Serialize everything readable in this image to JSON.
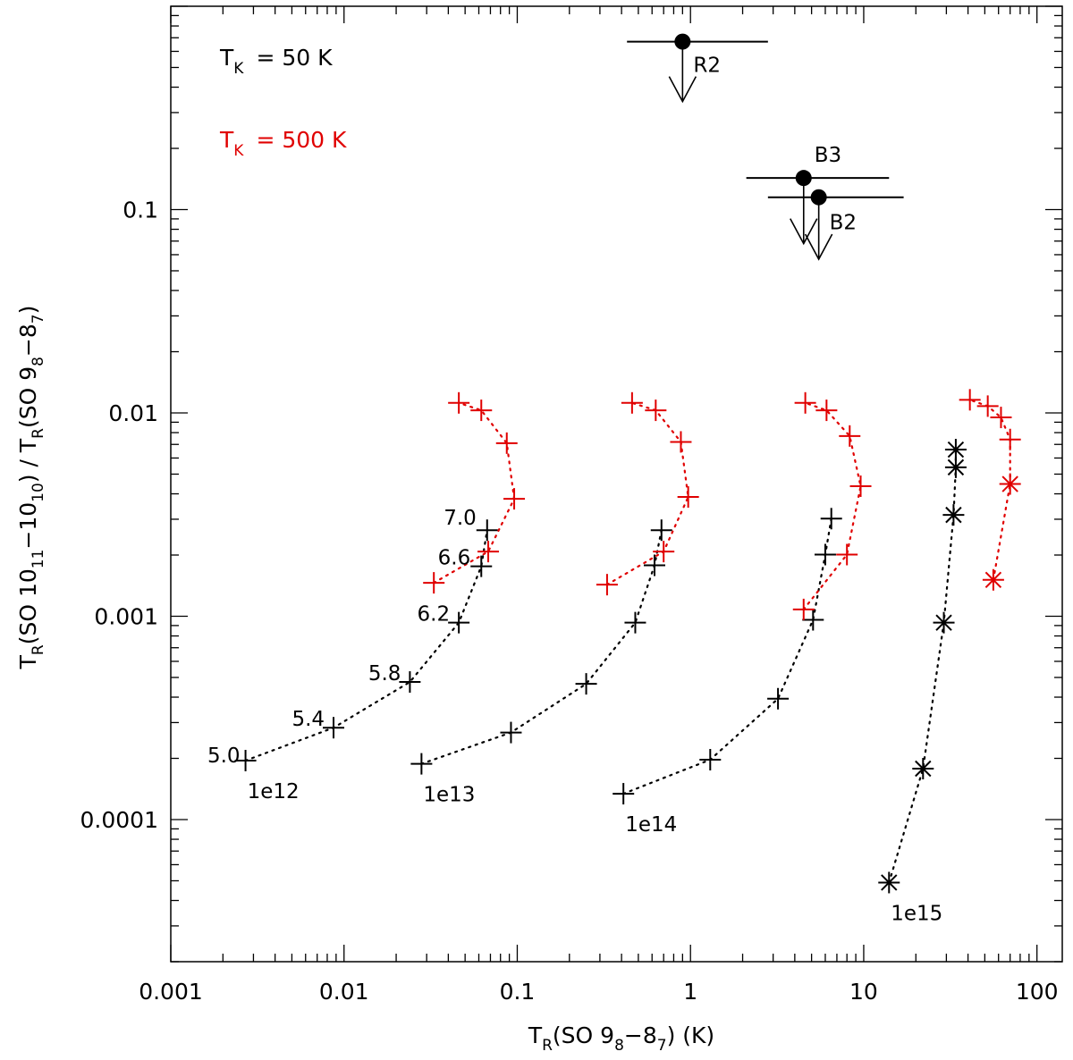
{
  "chart_data": {
    "type": "scatter",
    "x_scale": "log",
    "y_scale": "log",
    "xlim": [
      0.001,
      140
    ],
    "ylim": [
      2e-05,
      1.0
    ],
    "grid": false,
    "xlabel": {
      "pre": "T",
      "sub1": "R",
      "mid": "(SO 9",
      "sub2": "8",
      "mid2": "−8",
      "sub3": "7",
      "post": ") (K)"
    },
    "ylabel": {
      "t1": "T",
      "s1": "R",
      "t2": "(SO 10",
      "s2": "11",
      "t3": "−10",
      "s3": "10",
      "t4": ") / T",
      "s4": "R",
      "t5": "(SO 9",
      "s5": "8",
      "t6": "−8",
      "s6": "7",
      "t7": ")"
    },
    "x_ticks": [
      {
        "v": 0.001,
        "label": "0.001"
      },
      {
        "v": 0.01,
        "label": "0.01"
      },
      {
        "v": 0.1,
        "label": "0.1"
      },
      {
        "v": 1,
        "label": "1"
      },
      {
        "v": 10,
        "label": "10"
      },
      {
        "v": 100,
        "label": "100"
      }
    ],
    "y_ticks": [
      {
        "v": 0.0001,
        "label": "0.0001"
      },
      {
        "v": 0.001,
        "label": "0.001"
      },
      {
        "v": 0.01,
        "label": "0.01"
      },
      {
        "v": 0.1,
        "label": "0.1"
      }
    ],
    "legend": [
      {
        "label": "T",
        "sub": "K",
        "value": "=   50 K",
        "color": "#000000"
      },
      {
        "label": "T",
        "sub": "K",
        "value": "= 500 K",
        "color": "#e00000"
      }
    ],
    "series": [
      {
        "name": "50 K 1e12",
        "color": "#000000",
        "marker": "plus",
        "density_labels": [
          "5.0",
          "5.4",
          "5.8",
          "6.2",
          "6.6",
          "7.0"
        ],
        "x": [
          0.0027,
          0.0087,
          0.024,
          0.046,
          0.062,
          0.067
        ],
        "y": [
          0.000195,
          0.000283,
          0.000475,
          0.00093,
          0.00176,
          0.00265
        ]
      },
      {
        "name": "500 K 1e12",
        "color": "#e00000",
        "marker": "plus",
        "x": [
          0.033,
          0.068,
          0.096,
          0.087,
          0.062,
          0.046
        ],
        "y": [
          0.00146,
          0.00208,
          0.00378,
          0.0071,
          0.0103,
          0.0112
        ]
      },
      {
        "name": "50 K 1e13",
        "color": "#000000",
        "marker": "plus",
        "x": [
          0.028,
          0.092,
          0.25,
          0.48,
          0.62,
          0.68
        ],
        "y": [
          0.000188,
          0.000268,
          0.000465,
          0.00093,
          0.00178,
          0.00265
        ]
      },
      {
        "name": "500 K 1e13",
        "color": "#e00000",
        "marker": "plus",
        "x": [
          0.33,
          0.7,
          0.97,
          0.88,
          0.63,
          0.46
        ],
        "y": [
          0.00143,
          0.00208,
          0.00386,
          0.0072,
          0.0103,
          0.0112
        ]
      },
      {
        "name": "50 K 1e14",
        "color": "#000000",
        "marker": "plus",
        "x": [
          0.41,
          1.3,
          3.2,
          5.1,
          6.0,
          6.5
        ],
        "y": [
          0.000134,
          0.000197,
          0.000393,
          0.00096,
          0.00201,
          0.00302
        ]
      },
      {
        "name": "500 K 1e14",
        "color": "#e00000",
        "marker": "plus",
        "x": [
          4.5,
          8.0,
          9.6,
          8.3,
          6.1,
          4.6
        ],
        "y": [
          0.00108,
          0.00201,
          0.00436,
          0.0077,
          0.0103,
          0.0112
        ]
      },
      {
        "name": "50 K 1e15",
        "color": "#000000",
        "marker": "asterisk",
        "x": [
          14,
          22,
          29,
          33,
          34,
          34
        ],
        "y": [
          4.9e-05,
          0.000178,
          0.00093,
          0.00315,
          0.0054,
          0.0066
        ]
      },
      {
        "name": "500 K 1e15",
        "color": "#e00000",
        "marker": "asterisk",
        "x": [
          56,
          70
        ],
        "y": [
          0.00151,
          0.00447
        ]
      },
      {
        "name": "500 K 1e15 plus",
        "color": "#e00000",
        "marker": "plus",
        "x": [
          70,
          62,
          52,
          41
        ],
        "y": [
          0.0074,
          0.0095,
          0.0108,
          0.0116
        ]
      }
    ],
    "column_labels": [
      {
        "text": "1e12",
        "x": 0.0027,
        "y": 0.000195
      },
      {
        "text": "1e13",
        "x": 0.028,
        "y": 0.000188
      },
      {
        "text": "1e14",
        "x": 0.41,
        "y": 0.000134
      },
      {
        "text": "1e15",
        "x": 14,
        "y": 4.9e-05
      }
    ],
    "sources": [
      {
        "name": "R2",
        "x": 0.9,
        "y": 0.67,
        "xerr": [
          0.43,
          2.8
        ],
        "limit_to": 0.34
      },
      {
        "name": "B3",
        "x": 4.5,
        "y": 0.143,
        "xerr": [
          2.1,
          14
        ],
        "limit_to": 0.068
      },
      {
        "name": "B2",
        "x": 5.5,
        "y": 0.115,
        "xerr": [
          2.8,
          17
        ],
        "limit_to": 0.057
      }
    ]
  }
}
